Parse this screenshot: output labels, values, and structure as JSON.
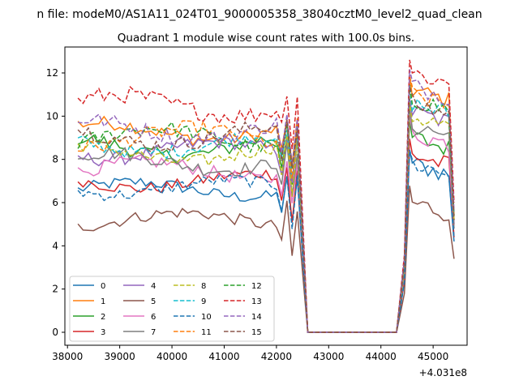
{
  "chart_data": {
    "type": "line",
    "suptitle": "n file: modeM0/AS1A11_024T01_9000005358_38040cztM0_level2_quad_clean",
    "title": "Quadrant 1 module wise count rates with 100.0s bins.",
    "xlabel": "",
    "ylabel": "",
    "x_offset_label": "+4.031e8",
    "xlim": [
      37950,
      45650
    ],
    "ylim": [
      -0.6,
      13.2
    ],
    "xticks": [
      38000,
      39000,
      40000,
      41000,
      42000,
      43000,
      44000,
      45000
    ],
    "yticks": [
      0,
      2,
      4,
      6,
      8,
      10,
      12
    ],
    "grid": false,
    "legend_position": "lower-left",
    "legend_columns": 4,
    "series": [
      {
        "name": "0",
        "color": "#1f77b4",
        "dash": "solid",
        "base": 6.6,
        "amp": 0.35,
        "post": 7.8,
        "end": 4.2
      },
      {
        "name": "1",
        "color": "#ff7f0e",
        "dash": "solid",
        "base": 9.3,
        "amp": 0.4,
        "post": 11.2,
        "end": 5.0
      },
      {
        "name": "2",
        "color": "#2ca02c",
        "dash": "solid",
        "base": 8.6,
        "amp": 0.45,
        "post": 9.0,
        "end": 5.2
      },
      {
        "name": "3",
        "color": "#d62728",
        "dash": "solid",
        "base": 7.0,
        "amp": 0.35,
        "post": 8.2,
        "end": 4.4
      },
      {
        "name": "4",
        "color": "#9467bd",
        "dash": "solid",
        "base": 8.4,
        "amp": 0.4,
        "post": 10.2,
        "end": 5.0
      },
      {
        "name": "5",
        "color": "#8c564b",
        "dash": "solid",
        "base": 5.2,
        "amp": 0.35,
        "post": 6.0,
        "end": 3.4
      },
      {
        "name": "6",
        "color": "#e377c2",
        "dash": "solid",
        "base": 7.5,
        "amp": 0.4,
        "post": 9.2,
        "end": 4.8
      },
      {
        "name": "7",
        "color": "#7f7f7f",
        "dash": "solid",
        "base": 7.9,
        "amp": 0.4,
        "post": 9.6,
        "end": 4.8
      },
      {
        "name": "8",
        "color": "#bcbd22",
        "dash": "dashed",
        "base": 8.3,
        "amp": 0.4,
        "post": 10.0,
        "end": 5.2
      },
      {
        "name": "9",
        "color": "#17becf",
        "dash": "dashed",
        "base": 8.7,
        "amp": 0.4,
        "post": 10.6,
        "end": 5.4
      },
      {
        "name": "10",
        "color": "#1f77b4",
        "dash": "dashed",
        "base": 6.7,
        "amp": 0.35,
        "post": 7.8,
        "end": 4.4
      },
      {
        "name": "11",
        "color": "#ff7f0e",
        "dash": "dashed",
        "base": 9.0,
        "amp": 0.45,
        "post": 11.0,
        "end": 5.4
      },
      {
        "name": "12",
        "color": "#2ca02c",
        "dash": "dashed",
        "base": 9.0,
        "amp": 0.45,
        "post": 10.8,
        "end": 5.4
      },
      {
        "name": "13",
        "color": "#d62728",
        "dash": "dashed",
        "base": 10.5,
        "amp": 0.5,
        "post": 12.0,
        "end": 6.0
      },
      {
        "name": "14",
        "color": "#9467bd",
        "dash": "dashed",
        "base": 9.4,
        "amp": 0.45,
        "post": 11.4,
        "end": 5.6
      },
      {
        "name": "15",
        "color": "#8c564b",
        "dash": "dashed",
        "base": 9.1,
        "amp": 0.45,
        "post": 10.6,
        "end": 5.2
      }
    ]
  }
}
